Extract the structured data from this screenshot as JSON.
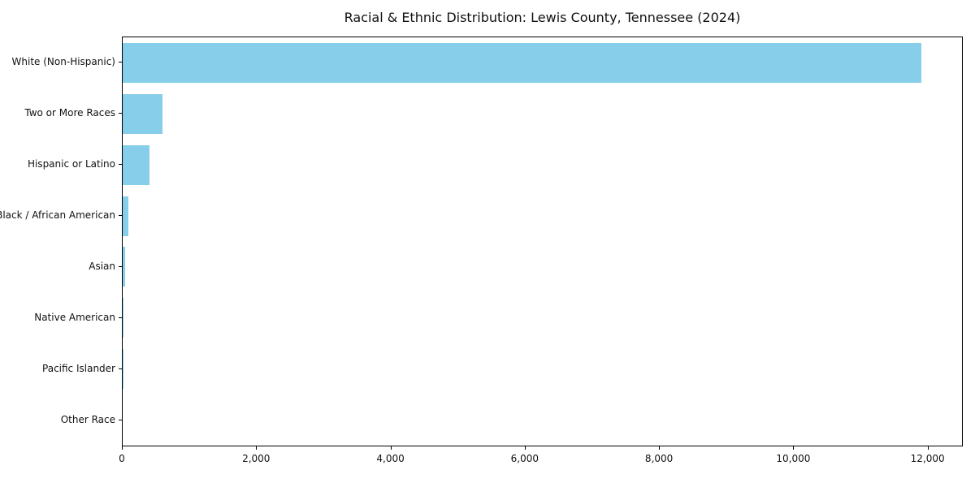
{
  "chart_data": {
    "type": "bar",
    "orientation": "horizontal",
    "title": "Racial & Ethnic Distribution: Lewis County, Tennessee (2024)",
    "categories": [
      "White (Non-Hispanic)",
      "Two or More Races",
      "Hispanic or Latino",
      "Black / African American",
      "Asian",
      "Native American",
      "Pacific Islander",
      "Other Race"
    ],
    "values": [
      11900,
      590,
      400,
      90,
      35,
      15,
      5,
      0
    ],
    "bar_color": "#87CEEB",
    "xlabel": "",
    "ylabel": "",
    "xlim": [
      0,
      12500
    ],
    "x_ticks": [
      0,
      2000,
      4000,
      6000,
      8000,
      10000,
      12000
    ],
    "x_tick_labels": [
      "0",
      "2,000",
      "4,000",
      "6,000",
      "8,000",
      "10,000",
      "12,000"
    ],
    "grid": false,
    "legend": "none"
  }
}
